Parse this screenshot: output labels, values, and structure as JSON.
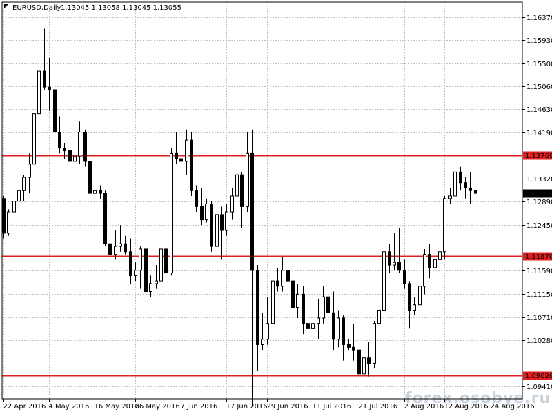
{
  "header": {
    "symbol": "EURUSD,Daily",
    "ohlc": "1.13045 1.13058 1.13045 1.13055"
  },
  "watermark": "forex.osobye.ru",
  "colors": {
    "grid": "#c0c0c0",
    "level_line": "#e02020",
    "level_label_bg": "#e02020",
    "price_label_bg": "#000000",
    "bull_fill": "#ffffff",
    "bear_fill": "#000000",
    "axis": "#000000"
  },
  "chart_data": {
    "type": "candlestick",
    "title": "EURUSD,Daily",
    "y_axis": {
      "side": "right",
      "range": [
        1.0918,
        1.1665
      ],
      "ticks": [
        "1.16370",
        "1.15930",
        "1.15500",
        "1.15060",
        "1.14630",
        "1.14190",
        "1.13320",
        "1.12890",
        "1.12450",
        "1.11590",
        "1.11150",
        "1.10710",
        "1.10280",
        "1.09410"
      ]
    },
    "x_axis": {
      "ticks": [
        {
          "label": "22 Apr 2016",
          "index": 0
        },
        {
          "label": "4 May 2016",
          "index": 9
        },
        {
          "label": "16 May 2016",
          "index": 18
        },
        {
          "label": "26 May 2016",
          "index": 26
        },
        {
          "label": "7 Jun 2016",
          "index": 35
        },
        {
          "label": "17 Jun 2016",
          "index": 44
        },
        {
          "label": "29 Jun 2016",
          "index": 52
        },
        {
          "label": "11 Jul 2016",
          "index": 61
        },
        {
          "label": "21 Jul 2016",
          "index": 70
        },
        {
          "label": "2 Aug 2016",
          "index": 79
        },
        {
          "label": "12 Aug 2016",
          "index": 87
        },
        {
          "label": "24 Aug 2016",
          "index": 96
        }
      ]
    },
    "grid": true,
    "levels": [
      {
        "value": 1.13769,
        "label": "1.13769"
      },
      {
        "value": 1.1187,
        "label": "1.11870"
      },
      {
        "value": 1.09626,
        "label": "1.09626"
      }
    ],
    "current_price": {
      "value": 1.13055,
      "label": "1.13055"
    },
    "candles": [
      [
        1.1295,
        1.123,
        1.13,
        1.122
      ],
      [
        1.123,
        1.127,
        1.1275,
        1.1225
      ],
      [
        1.127,
        1.129,
        1.13,
        1.1255
      ],
      [
        1.129,
        1.131,
        1.1325,
        1.128
      ],
      [
        1.131,
        1.1335,
        1.134,
        1.129
      ],
      [
        1.1335,
        1.136,
        1.138,
        1.1305
      ],
      [
        1.136,
        1.1455,
        1.1465,
        1.135
      ],
      [
        1.1455,
        1.1535,
        1.154,
        1.145
      ],
      [
        1.1535,
        1.1505,
        1.1615,
        1.15
      ],
      [
        1.1505,
        1.15,
        1.156,
        1.146
      ],
      [
        1.15,
        1.142,
        1.151,
        1.141
      ],
      [
        1.142,
        1.139,
        1.145,
        1.138
      ],
      [
        1.139,
        1.1385,
        1.14,
        1.137
      ],
      [
        1.1385,
        1.1365,
        1.144,
        1.1355
      ],
      [
        1.1365,
        1.1375,
        1.139,
        1.1355
      ],
      [
        1.1375,
        1.142,
        1.144,
        1.136
      ],
      [
        1.142,
        1.1365,
        1.1425,
        1.1355
      ],
      [
        1.1365,
        1.1305,
        1.1375,
        1.1285
      ],
      [
        1.1305,
        1.131,
        1.133,
        1.13
      ],
      [
        1.131,
        1.1305,
        1.132,
        1.1295
      ],
      [
        1.1305,
        1.121,
        1.131,
        1.1205
      ],
      [
        1.121,
        1.119,
        1.1215,
        1.118
      ],
      [
        1.119,
        1.1205,
        1.1235,
        1.118
      ],
      [
        1.1205,
        1.121,
        1.1245,
        1.1195
      ],
      [
        1.121,
        1.1195,
        1.1225,
        1.119
      ],
      [
        1.1195,
        1.115,
        1.122,
        1.1135
      ],
      [
        1.115,
        1.116,
        1.1175,
        1.114
      ],
      [
        1.116,
        1.12,
        1.1205,
        1.1125
      ],
      [
        1.12,
        1.112,
        1.1205,
        1.1105
      ],
      [
        1.112,
        1.1135,
        1.115,
        1.111
      ],
      [
        1.1135,
        1.114,
        1.117,
        1.1125
      ],
      [
        1.114,
        1.12,
        1.1215,
        1.113
      ],
      [
        1.12,
        1.1155,
        1.121,
        1.114
      ],
      [
        1.1155,
        1.138,
        1.139,
        1.115
      ],
      [
        1.138,
        1.137,
        1.142,
        1.136
      ],
      [
        1.137,
        1.1365,
        1.141,
        1.135
      ],
      [
        1.1365,
        1.1405,
        1.1425,
        1.134
      ],
      [
        1.1405,
        1.131,
        1.142,
        1.13
      ],
      [
        1.131,
        1.128,
        1.132,
        1.127
      ],
      [
        1.128,
        1.1255,
        1.1315,
        1.1245
      ],
      [
        1.1255,
        1.1285,
        1.1295,
        1.125
      ],
      [
        1.1285,
        1.1205,
        1.129,
        1.1195
      ],
      [
        1.1205,
        1.1265,
        1.127,
        1.1195
      ],
      [
        1.1265,
        1.1235,
        1.128,
        1.118
      ],
      [
        1.1235,
        1.127,
        1.1285,
        1.1225
      ],
      [
        1.127,
        1.13,
        1.1315,
        1.1255
      ],
      [
        1.13,
        1.134,
        1.1355,
        1.129
      ],
      [
        1.134,
        1.128,
        1.1345,
        1.124
      ],
      [
        1.128,
        1.138,
        1.142,
        1.127
      ],
      [
        1.138,
        1.116,
        1.1425,
        1.0905
      ],
      [
        1.116,
        1.102,
        1.117,
        1.097
      ],
      [
        1.102,
        1.103,
        1.108,
        1.101
      ],
      [
        1.103,
        1.106,
        1.111,
        1.102
      ],
      [
        1.106,
        1.114,
        1.115,
        1.105
      ],
      [
        1.114,
        1.113,
        1.1165,
        1.112
      ],
      [
        1.113,
        1.116,
        1.1185,
        1.112
      ],
      [
        1.116,
        1.114,
        1.118,
        1.113
      ],
      [
        1.114,
        1.109,
        1.116,
        1.108
      ],
      [
        1.109,
        1.1115,
        1.1135,
        1.107
      ],
      [
        1.1115,
        1.106,
        1.113,
        1.104
      ],
      [
        1.106,
        1.105,
        1.108,
        1.099
      ],
      [
        1.105,
        1.106,
        1.115,
        1.1045
      ],
      [
        1.106,
        1.107,
        1.1105,
        1.103
      ],
      [
        1.107,
        1.111,
        1.113,
        1.106
      ],
      [
        1.111,
        1.108,
        1.1155,
        1.106
      ],
      [
        1.108,
        1.103,
        1.112,
        1.101
      ],
      [
        1.103,
        1.107,
        1.1085,
        1.1015
      ],
      [
        1.107,
        1.102,
        1.1075,
        1.099
      ],
      [
        1.102,
        1.1015,
        1.103,
        1.101
      ],
      [
        1.1015,
        1.101,
        1.106,
        1.099
      ],
      [
        1.101,
        1.0965,
        1.104,
        1.0955
      ],
      [
        1.0965,
        1.0995,
        1.1,
        1.0955
      ],
      [
        1.0995,
        1.0985,
        1.1025,
        1.096
      ],
      [
        1.0985,
        1.106,
        1.1065,
        1.0975
      ],
      [
        1.106,
        1.1085,
        1.1115,
        1.1045
      ],
      [
        1.1085,
        1.1195,
        1.12,
        1.108
      ],
      [
        1.1195,
        1.117,
        1.121,
        1.1155
      ],
      [
        1.117,
        1.1175,
        1.123,
        1.116
      ],
      [
        1.1175,
        1.116,
        1.124,
        1.1155
      ],
      [
        1.116,
        1.1135,
        1.118,
        1.1125
      ],
      [
        1.1135,
        1.1085,
        1.114,
        1.105
      ],
      [
        1.1085,
        1.1095,
        1.111,
        1.1075
      ],
      [
        1.1095,
        1.113,
        1.1145,
        1.1085
      ],
      [
        1.113,
        1.119,
        1.12,
        1.1115
      ],
      [
        1.119,
        1.1165,
        1.121,
        1.1145
      ],
      [
        1.1165,
        1.118,
        1.124,
        1.116
      ],
      [
        1.118,
        1.1195,
        1.1225,
        1.117
      ],
      [
        1.1195,
        1.1295,
        1.13,
        1.118
      ],
      [
        1.1295,
        1.13,
        1.1315,
        1.1285
      ],
      [
        1.13,
        1.1345,
        1.1365,
        1.129
      ],
      [
        1.1345,
        1.1325,
        1.1355,
        1.131
      ],
      [
        1.1325,
        1.1315,
        1.1335,
        1.1295
      ],
      [
        1.1315,
        1.131,
        1.1345,
        1.1285
      ],
      [
        1.131,
        1.1305,
        1.131,
        1.1305
      ]
    ]
  }
}
